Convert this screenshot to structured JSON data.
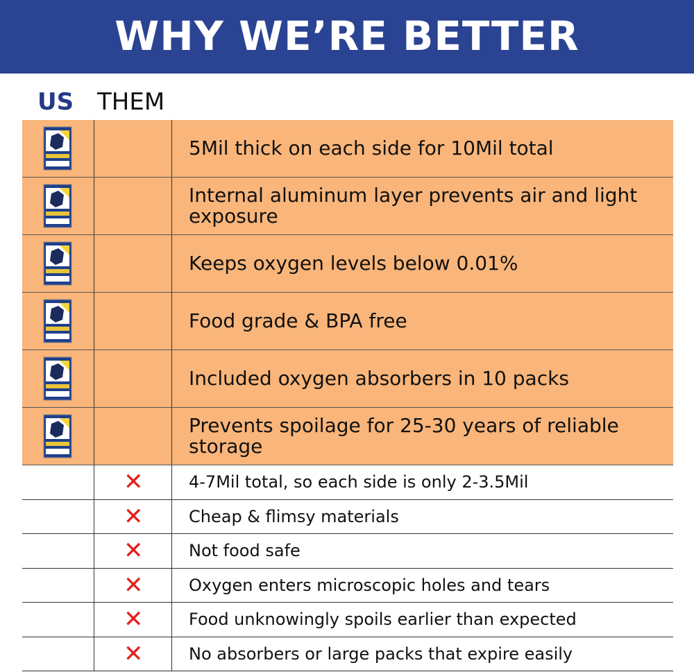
{
  "header": {
    "title": "WHY WE’RE BETTER"
  },
  "columns": {
    "us": "US",
    "them": "THEM"
  },
  "us_rows": [
    "5Mil thick on each side for 10Mil total",
    "Internal aluminum layer prevents air and light exposure",
    "Keeps oxygen levels below 0.01%",
    "Food grade & BPA free",
    "Included oxygen absorbers in 10 packs",
    "Prevents spoilage for 25-30 years of reliable storage"
  ],
  "them_rows": [
    "4-7Mil total, so each side is only 2-3.5Mil",
    "Cheap & flimsy materials",
    "Not food safe",
    "Oxygen enters microscopic holes and tears",
    "Food unknowingly spoils earlier than expected",
    "No absorbers or large packs that expire easily"
  ]
}
